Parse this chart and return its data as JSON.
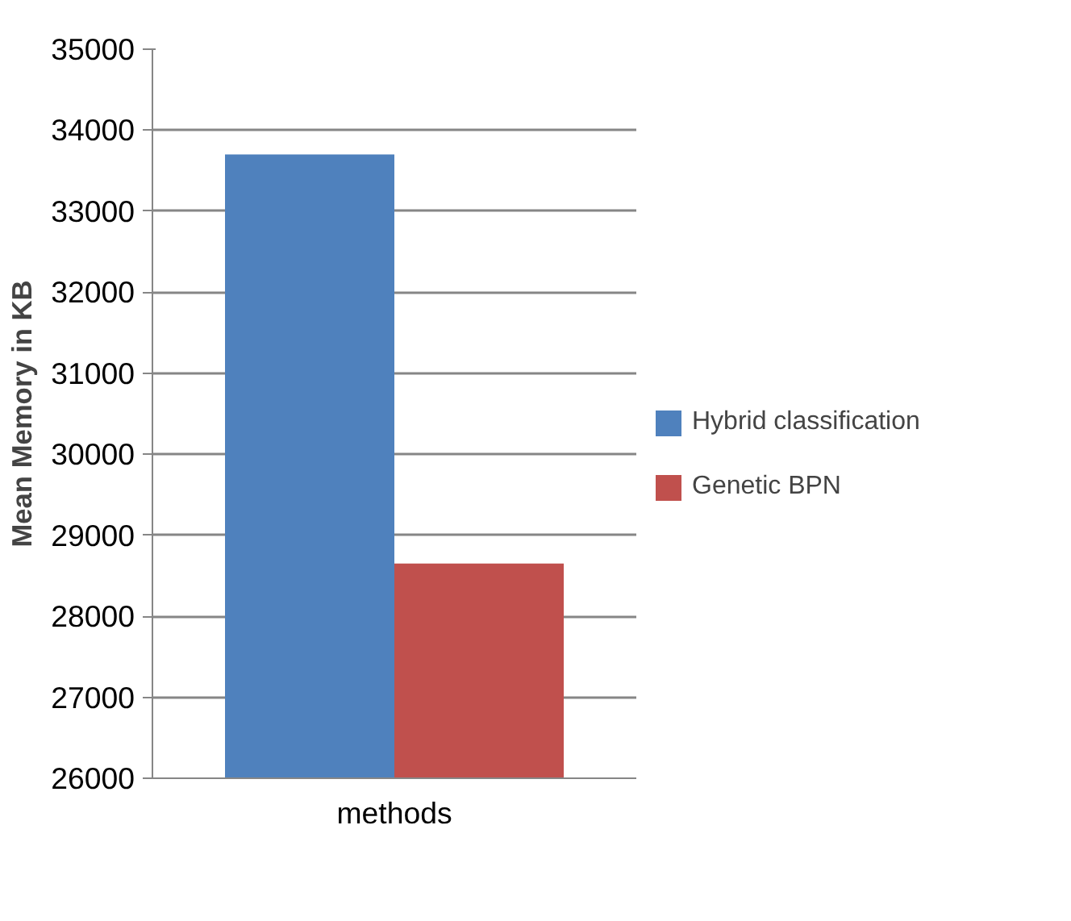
{
  "chart_data": {
    "type": "bar",
    "ylabel": "Mean Memory in KB",
    "categories": [
      "methods"
    ],
    "series": [
      {
        "name": "Hybrid classification",
        "color": "#4f81bd",
        "values": [
          33700
        ]
      },
      {
        "name": "Genetic BPN",
        "color": "#c0504d",
        "values": [
          28650
        ]
      }
    ],
    "ylim": [
      26000,
      35000
    ],
    "yticks": [
      26000,
      27000,
      28000,
      29000,
      30000,
      31000,
      32000,
      33000,
      34000,
      35000
    ],
    "grid": "y",
    "legend": "right"
  }
}
